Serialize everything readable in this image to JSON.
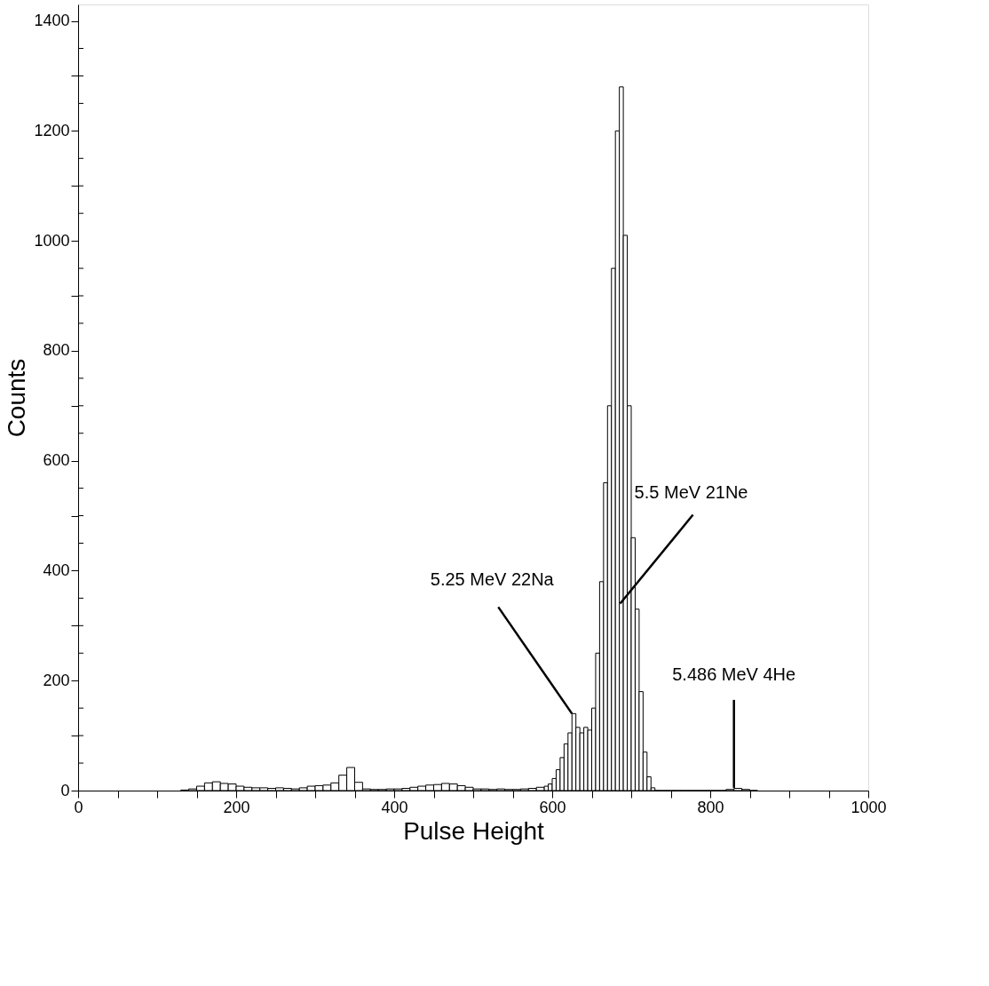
{
  "chart_data": {
    "type": "histogram",
    "xlabel": "Pulse Height",
    "ylabel": "Counts",
    "bins": [
      130,
      140,
      150,
      160,
      170,
      180,
      190,
      200,
      210,
      220,
      230,
      240,
      250,
      260,
      270,
      280,
      290,
      300,
      310,
      320,
      330,
      340,
      350,
      360,
      370,
      380,
      390,
      400,
      410,
      420,
      430,
      440,
      450,
      460,
      470,
      480,
      490,
      500,
      510,
      520,
      530,
      540,
      550,
      560,
      570,
      580,
      590,
      595,
      600,
      605,
      610,
      615,
      620,
      625,
      630,
      635,
      640,
      645,
      650,
      655,
      660,
      665,
      670,
      675,
      680,
      685,
      690,
      695,
      700,
      705,
      710,
      715,
      720,
      725,
      730,
      740,
      750,
      760,
      770,
      780,
      790,
      800,
      810,
      820,
      830,
      840,
      850,
      860
    ],
    "values": [
      1,
      3,
      8,
      14,
      16,
      13,
      12,
      8,
      6,
      5,
      5,
      4,
      5,
      4,
      3,
      5,
      8,
      9,
      10,
      14,
      28,
      42,
      15,
      3,
      2,
      2,
      3,
      3,
      4,
      6,
      8,
      10,
      11,
      13,
      12,
      9,
      6,
      3,
      3,
      2,
      3,
      2,
      2,
      3,
      4,
      6,
      8,
      12,
      22,
      38,
      60,
      85,
      105,
      140,
      115,
      105,
      115,
      110,
      150,
      250,
      380,
      560,
      700,
      950,
      1200,
      1280,
      1010,
      700,
      460,
      330,
      180,
      70,
      25,
      5,
      0,
      0,
      0,
      0,
      0,
      0,
      0,
      0,
      0,
      2,
      4,
      2,
      0
    ],
    "color": "#000000",
    "xlim": [
      0,
      1000
    ],
    "ylim": [
      0,
      1430
    ],
    "xticks": [
      0,
      {
        "value": 50,
        "label": null
      },
      {
        "value": 100,
        "label": null
      },
      {
        "value": 150,
        "label": null
      },
      200,
      {
        "value": 250,
        "label": null
      },
      {
        "value": 300,
        "label": null
      },
      {
        "value": 350,
        "label": null
      },
      400,
      {
        "value": 450,
        "label": null
      },
      {
        "value": 500,
        "label": null
      },
      {
        "value": 550,
        "label": null
      },
      600,
      {
        "value": 650,
        "label": null
      },
      {
        "value": 700,
        "label": null
      },
      {
        "value": 750,
        "label": null
      },
      800,
      {
        "value": 850,
        "label": null
      },
      {
        "value": 900,
        "label": null
      },
      {
        "value": 950,
        "label": null
      },
      1000
    ],
    "yticks": [
      0,
      {
        "value": 50,
        "label": null
      },
      {
        "value": 100,
        "label": null
      },
      {
        "value": 150,
        "label": null
      },
      200,
      {
        "value": 250,
        "label": null
      },
      {
        "value": 300,
        "label": null
      },
      {
        "value": 350,
        "label": null
      },
      400,
      {
        "value": 450,
        "label": null
      },
      {
        "value": 500,
        "label": null
      },
      {
        "value": 550,
        "label": null
      },
      600,
      {
        "value": 650,
        "label": null
      },
      {
        "value": 700,
        "label": null
      },
      {
        "value": 750,
        "label": null
      },
      800,
      {
        "value": 850,
        "label": null
      },
      {
        "value": 900,
        "label": null
      },
      {
        "value": 950,
        "label": null
      },
      1000,
      {
        "value": 1050,
        "label": null
      },
      {
        "value": 1100,
        "label": null
      },
      {
        "value": 1150,
        "label": null
      },
      1200,
      {
        "value": 1250,
        "label": null
      },
      {
        "value": 1300,
        "label": null
      },
      {
        "value": 1350,
        "label": null
      },
      1400
    ],
    "grid": false,
    "annotations": [
      {
        "text": "5.25 MeV 22Na",
        "x": 625,
        "y": 140
      },
      {
        "text": "5.5 MeV 21Ne",
        "x": 686,
        "y": 340
      },
      {
        "text": "5.486 MeV 4He",
        "x": 830,
        "y": 5
      }
    ]
  }
}
